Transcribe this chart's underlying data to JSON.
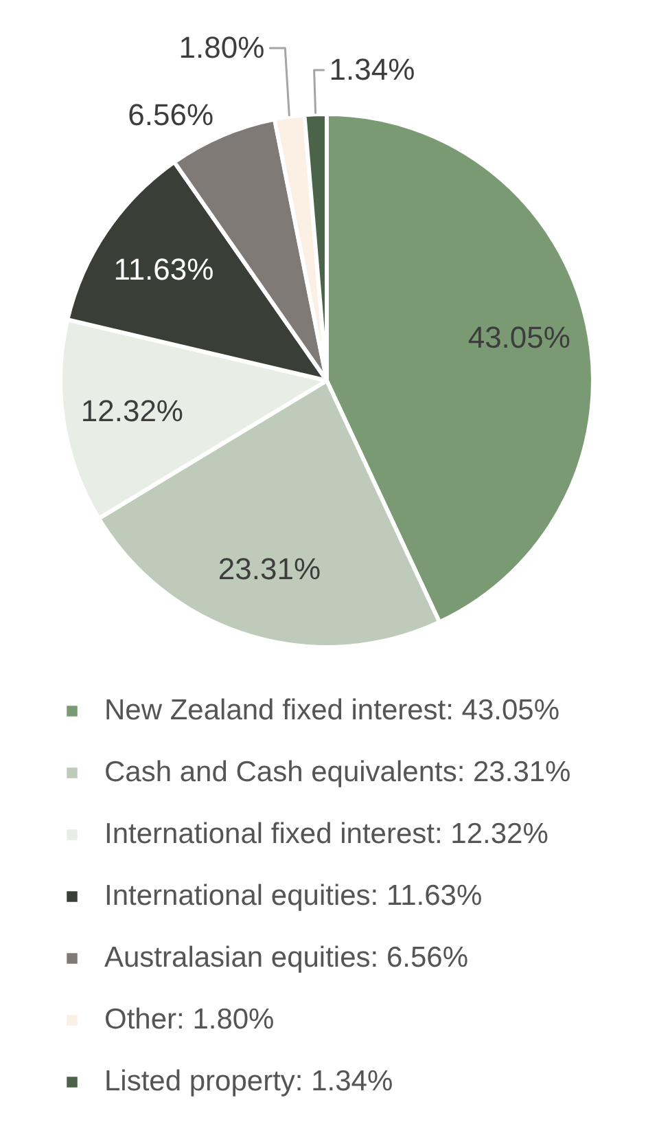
{
  "chart_data": {
    "type": "pie",
    "categories": [
      "New Zealand fixed interest",
      "Cash and Cash equivalents",
      "International fixed interest",
      "International equities",
      "Australasian equities",
      "Other",
      "Listed property"
    ],
    "values": [
      43.05,
      23.31,
      12.32,
      11.63,
      6.56,
      1.8,
      1.34
    ],
    "value_labels": [
      "43.05%",
      "23.31%",
      "12.32%",
      "11.63%",
      "6.56%",
      "1.80%",
      "1.34%"
    ],
    "colors": [
      "#7a9a73",
      "#bfcbba",
      "#e8ede6",
      "#3b3d37",
      "#807a77",
      "#fcefe4",
      "#4b6349"
    ],
    "legend": "bottom"
  }
}
